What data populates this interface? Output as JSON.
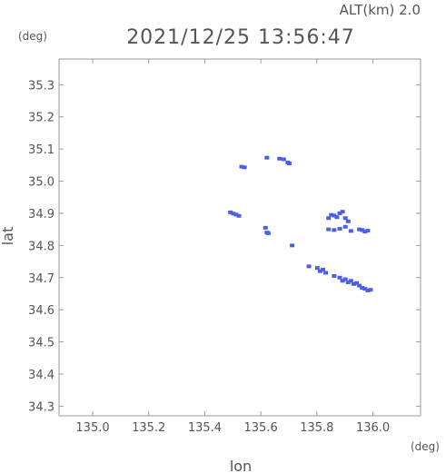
{
  "header": {
    "altitude": "ALT(km)  2.0",
    "timestamp": "2021/12/25 13:56:47"
  },
  "chart_data": {
    "type": "scatter",
    "xlabel": "lon",
    "ylabel": "lat",
    "x_unit": "(deg)",
    "y_unit": "(deg)",
    "xlim": [
      134.88,
      136.17
    ],
    "ylim": [
      34.27,
      35.38
    ],
    "x_ticks": [
      135.0,
      135.2,
      135.4,
      135.6,
      135.8,
      136.0
    ],
    "x_tick_labels": [
      "135.0",
      "135.2",
      "135.4",
      "135.6",
      "135.8",
      "136.0"
    ],
    "y_ticks": [
      34.3,
      34.4,
      34.5,
      34.6,
      34.7,
      34.8,
      34.9,
      35.0,
      35.1,
      35.2,
      35.3
    ],
    "y_tick_labels": [
      "34.3",
      "34.4",
      "34.5",
      "34.6",
      "34.7",
      "34.8",
      "34.9",
      "35.0",
      "35.1",
      "35.2",
      "35.3"
    ],
    "grid": false,
    "colors": {
      "echo": "#4a5ee8",
      "echo_strong": "#3a4fd8",
      "frame": "#999999",
      "text": "#555555"
    },
    "series": [
      {
        "points": [
          [
            135.53,
            35.045
          ],
          [
            135.54,
            35.043
          ],
          [
            135.62,
            35.073
          ],
          [
            135.665,
            35.07
          ],
          [
            135.68,
            35.068
          ],
          [
            135.695,
            35.058
          ],
          [
            135.7,
            35.055
          ],
          [
            135.49,
            34.903
          ],
          [
            135.5,
            34.899
          ],
          [
            135.51,
            34.896
          ],
          [
            135.52,
            34.892
          ],
          [
            135.615,
            34.855
          ],
          [
            135.62,
            34.84
          ],
          [
            135.625,
            34.838
          ],
          [
            135.71,
            34.8
          ],
          [
            135.77,
            34.735
          ],
          [
            135.84,
            34.885
          ],
          [
            135.85,
            34.895
          ],
          [
            135.86,
            34.893
          ],
          [
            135.87,
            34.888
          ],
          [
            135.88,
            34.9
          ],
          [
            135.89,
            34.905
          ],
          [
            135.9,
            34.885
          ],
          [
            135.91,
            34.875
          ],
          [
            135.84,
            34.85
          ],
          [
            135.86,
            34.848
          ],
          [
            135.88,
            34.852
          ],
          [
            135.9,
            34.858
          ],
          [
            135.92,
            34.845
          ],
          [
            135.95,
            34.85
          ],
          [
            135.96,
            34.848
          ],
          [
            135.97,
            34.843
          ],
          [
            135.98,
            34.846
          ],
          [
            135.8,
            34.73
          ],
          [
            135.81,
            34.72
          ],
          [
            135.82,
            34.725
          ],
          [
            135.83,
            34.715
          ],
          [
            135.86,
            34.705
          ],
          [
            135.88,
            34.7
          ],
          [
            135.89,
            34.69
          ],
          [
            135.9,
            34.695
          ],
          [
            135.91,
            34.685
          ],
          [
            135.92,
            34.69
          ],
          [
            135.93,
            34.68
          ],
          [
            135.94,
            34.683
          ],
          [
            135.95,
            34.675
          ],
          [
            135.96,
            34.668
          ],
          [
            135.97,
            34.665
          ],
          [
            135.98,
            34.66
          ],
          [
            135.99,
            34.662
          ]
        ]
      }
    ]
  }
}
